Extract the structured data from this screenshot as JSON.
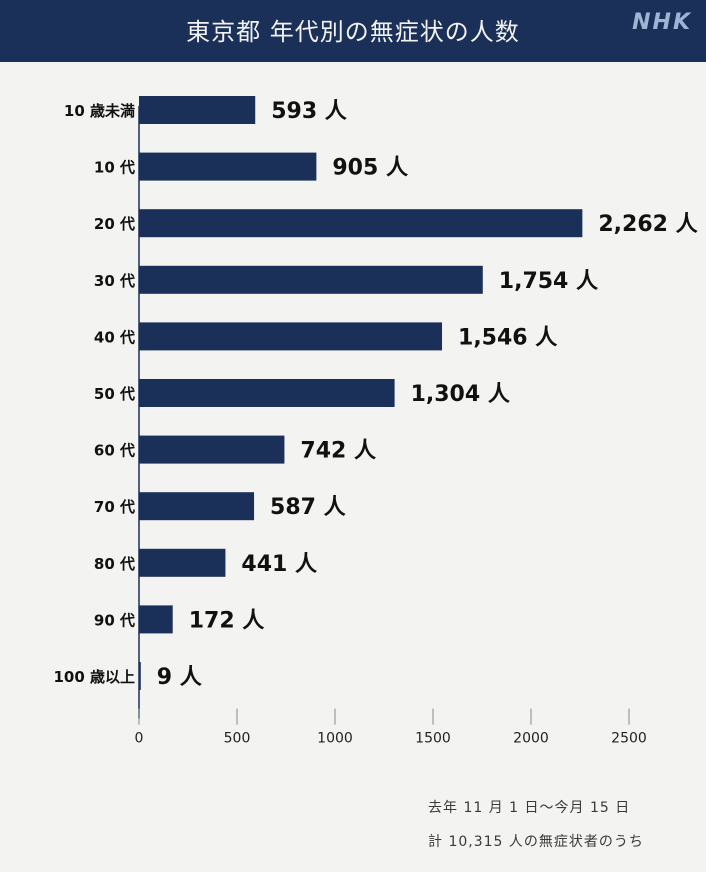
{
  "header": {
    "title": "東京都 年代別の無症状の人数",
    "logo": "NHK"
  },
  "chart_data": {
    "type": "bar",
    "orientation": "horizontal",
    "title": "東京都 年代別の無症状の人数",
    "categories": [
      "10 歳未満",
      "10 代",
      "20 代",
      "30 代",
      "40 代",
      "50 代",
      "60 代",
      "70 代",
      "80 代",
      "90 代",
      "100 歳以上"
    ],
    "values": [
      593,
      905,
      2262,
      1754,
      1546,
      1304,
      742,
      587,
      441,
      172,
      9
    ],
    "value_labels": [
      "593 人",
      "905 人",
      "2,262 人",
      "1,754 人",
      "1,546 人",
      "1,304 人",
      "742 人",
      "587 人",
      "441 人",
      "172 人",
      "9 人"
    ],
    "xticks": [
      "0",
      "500",
      "1000",
      "1500",
      "2000",
      "2500"
    ],
    "xlim": [
      0,
      2500
    ],
    "grid": false,
    "bar_color": "#1b3058"
  },
  "footnote": {
    "line1": "去年 11 月 1 日〜今月 15 日",
    "line2": "計 10,315 人の無症状者のうち"
  }
}
